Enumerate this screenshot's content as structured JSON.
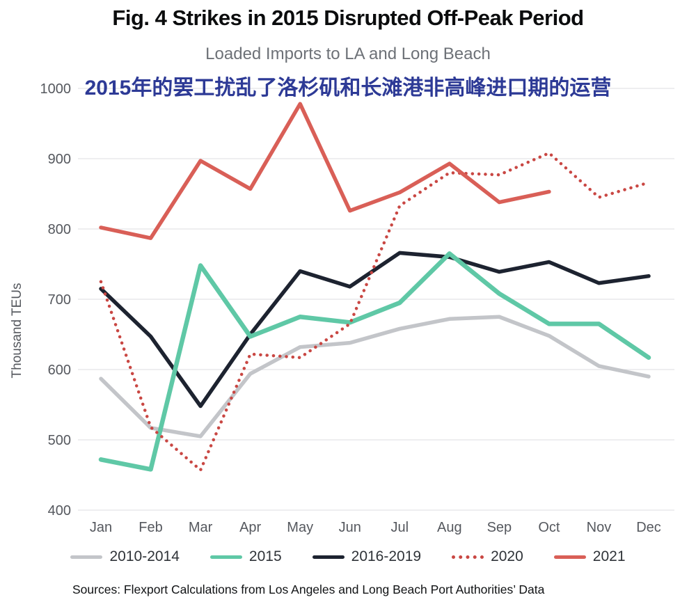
{
  "figure": {
    "title": "Fig. 4 Strikes in 2015 Disrupted Off-Peak Period",
    "subtitle": "Loaded Imports to LA and Long Beach",
    "annotation": "2015年的罢工扰乱了洛杉矶和长滩港非高峰进口期的运营",
    "source": "Sources: Flexport Calculations from Los Angeles and Long Beach Port Authorities’ Data"
  },
  "colors": {
    "title_text": "#0b0c0d",
    "subtitle_text": "#6d7177",
    "annotation_text": "#2d3a96",
    "axis_text": "#55585e",
    "gridline": "#e3e4e6",
    "legend_text": "#2f3338",
    "source_text": "#101214"
  },
  "chart_data": {
    "type": "line",
    "title": "Loaded Imports to LA and Long Beach",
    "xlabel": "",
    "ylabel": "Thousand TEUs",
    "x": [
      "Jan",
      "Feb",
      "Mar",
      "Apr",
      "May",
      "Jun",
      "Jul",
      "Aug",
      "Sep",
      "Oct",
      "Nov",
      "Dec"
    ],
    "ylim": [
      400,
      1000
    ],
    "yticks": [
      400,
      500,
      600,
      700,
      800,
      900,
      1000
    ],
    "grid": true,
    "legend_position": "bottom",
    "series": [
      {
        "name": "2010-2014",
        "color": "#c3c5c9",
        "style": "solid",
        "z": 1,
        "values": [
          587,
          517,
          505,
          594,
          632,
          638,
          658,
          672,
          675,
          648,
          605,
          590
        ]
      },
      {
        "name": "2015",
        "color": "#5fc8a6",
        "style": "solid",
        "z": 3,
        "values": [
          472,
          458,
          748,
          647,
          675,
          667,
          695,
          765,
          708,
          665,
          665,
          617
        ]
      },
      {
        "name": "2016-2019",
        "color": "#1d2330",
        "style": "solid",
        "z": 2,
        "values": [
          715,
          647,
          548,
          650,
          740,
          718,
          766,
          760,
          739,
          753,
          723,
          733
        ]
      },
      {
        "name": "2020",
        "color": "#c94743",
        "style": "dotted",
        "z": 4,
        "values": [
          725,
          518,
          457,
          622,
          617,
          665,
          833,
          880,
          877,
          908,
          845,
          866
        ]
      },
      {
        "name": "2021",
        "color": "#d95f57",
        "style": "solid",
        "z": 5,
        "values": [
          802,
          787,
          897,
          857,
          978,
          826,
          852,
          893,
          838,
          853,
          null,
          null
        ]
      }
    ]
  }
}
